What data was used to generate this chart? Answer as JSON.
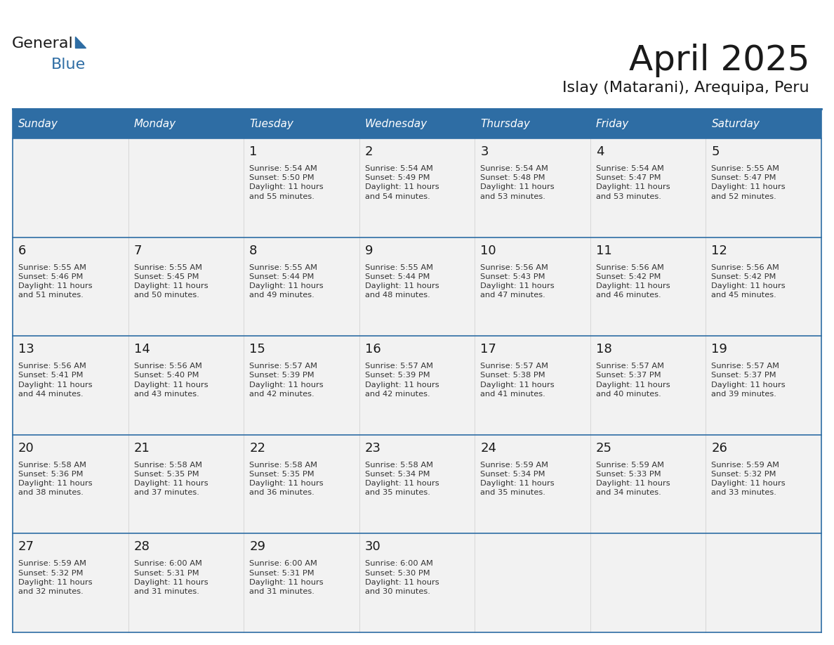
{
  "title": "April 2025",
  "subtitle": "Islay (Matarani), Arequipa, Peru",
  "header_bg_color": "#2E6DA4",
  "header_text_color": "#FFFFFF",
  "cell_bg_color_light": "#F2F2F2",
  "cell_bg_color_white": "#FFFFFF",
  "border_color": "#2E6DA4",
  "day_names": [
    "Sunday",
    "Monday",
    "Tuesday",
    "Wednesday",
    "Thursday",
    "Friday",
    "Saturday"
  ],
  "days": [
    {
      "day": null,
      "text": ""
    },
    {
      "day": null,
      "text": ""
    },
    {
      "day": 1,
      "text": "Sunrise: 5:54 AM\nSunset: 5:50 PM\nDaylight: 11 hours\nand 55 minutes."
    },
    {
      "day": 2,
      "text": "Sunrise: 5:54 AM\nSunset: 5:49 PM\nDaylight: 11 hours\nand 54 minutes."
    },
    {
      "day": 3,
      "text": "Sunrise: 5:54 AM\nSunset: 5:48 PM\nDaylight: 11 hours\nand 53 minutes."
    },
    {
      "day": 4,
      "text": "Sunrise: 5:54 AM\nSunset: 5:47 PM\nDaylight: 11 hours\nand 53 minutes."
    },
    {
      "day": 5,
      "text": "Sunrise: 5:55 AM\nSunset: 5:47 PM\nDaylight: 11 hours\nand 52 minutes."
    },
    {
      "day": 6,
      "text": "Sunrise: 5:55 AM\nSunset: 5:46 PM\nDaylight: 11 hours\nand 51 minutes."
    },
    {
      "day": 7,
      "text": "Sunrise: 5:55 AM\nSunset: 5:45 PM\nDaylight: 11 hours\nand 50 minutes."
    },
    {
      "day": 8,
      "text": "Sunrise: 5:55 AM\nSunset: 5:44 PM\nDaylight: 11 hours\nand 49 minutes."
    },
    {
      "day": 9,
      "text": "Sunrise: 5:55 AM\nSunset: 5:44 PM\nDaylight: 11 hours\nand 48 minutes."
    },
    {
      "day": 10,
      "text": "Sunrise: 5:56 AM\nSunset: 5:43 PM\nDaylight: 11 hours\nand 47 minutes."
    },
    {
      "day": 11,
      "text": "Sunrise: 5:56 AM\nSunset: 5:42 PM\nDaylight: 11 hours\nand 46 minutes."
    },
    {
      "day": 12,
      "text": "Sunrise: 5:56 AM\nSunset: 5:42 PM\nDaylight: 11 hours\nand 45 minutes."
    },
    {
      "day": 13,
      "text": "Sunrise: 5:56 AM\nSunset: 5:41 PM\nDaylight: 11 hours\nand 44 minutes."
    },
    {
      "day": 14,
      "text": "Sunrise: 5:56 AM\nSunset: 5:40 PM\nDaylight: 11 hours\nand 43 minutes."
    },
    {
      "day": 15,
      "text": "Sunrise: 5:57 AM\nSunset: 5:39 PM\nDaylight: 11 hours\nand 42 minutes."
    },
    {
      "day": 16,
      "text": "Sunrise: 5:57 AM\nSunset: 5:39 PM\nDaylight: 11 hours\nand 42 minutes."
    },
    {
      "day": 17,
      "text": "Sunrise: 5:57 AM\nSunset: 5:38 PM\nDaylight: 11 hours\nand 41 minutes."
    },
    {
      "day": 18,
      "text": "Sunrise: 5:57 AM\nSunset: 5:37 PM\nDaylight: 11 hours\nand 40 minutes."
    },
    {
      "day": 19,
      "text": "Sunrise: 5:57 AM\nSunset: 5:37 PM\nDaylight: 11 hours\nand 39 minutes."
    },
    {
      "day": 20,
      "text": "Sunrise: 5:58 AM\nSunset: 5:36 PM\nDaylight: 11 hours\nand 38 minutes."
    },
    {
      "day": 21,
      "text": "Sunrise: 5:58 AM\nSunset: 5:35 PM\nDaylight: 11 hours\nand 37 minutes."
    },
    {
      "day": 22,
      "text": "Sunrise: 5:58 AM\nSunset: 5:35 PM\nDaylight: 11 hours\nand 36 minutes."
    },
    {
      "day": 23,
      "text": "Sunrise: 5:58 AM\nSunset: 5:34 PM\nDaylight: 11 hours\nand 35 minutes."
    },
    {
      "day": 24,
      "text": "Sunrise: 5:59 AM\nSunset: 5:34 PM\nDaylight: 11 hours\nand 35 minutes."
    },
    {
      "day": 25,
      "text": "Sunrise: 5:59 AM\nSunset: 5:33 PM\nDaylight: 11 hours\nand 34 minutes."
    },
    {
      "day": 26,
      "text": "Sunrise: 5:59 AM\nSunset: 5:32 PM\nDaylight: 11 hours\nand 33 minutes."
    },
    {
      "day": 27,
      "text": "Sunrise: 5:59 AM\nSunset: 5:32 PM\nDaylight: 11 hours\nand 32 minutes."
    },
    {
      "day": 28,
      "text": "Sunrise: 6:00 AM\nSunset: 5:31 PM\nDaylight: 11 hours\nand 31 minutes."
    },
    {
      "day": 29,
      "text": "Sunrise: 6:00 AM\nSunset: 5:31 PM\nDaylight: 11 hours\nand 31 minutes."
    },
    {
      "day": 30,
      "text": "Sunrise: 6:00 AM\nSunset: 5:30 PM\nDaylight: 11 hours\nand 30 minutes."
    },
    {
      "day": null,
      "text": ""
    },
    {
      "day": null,
      "text": ""
    },
    {
      "day": null,
      "text": ""
    },
    {
      "day": null,
      "text": ""
    }
  ],
  "logo_text_general": "General",
  "logo_text_blue": "Blue",
  "logo_color_general": "#1a1a1a",
  "logo_color_blue": "#2E6DA4"
}
